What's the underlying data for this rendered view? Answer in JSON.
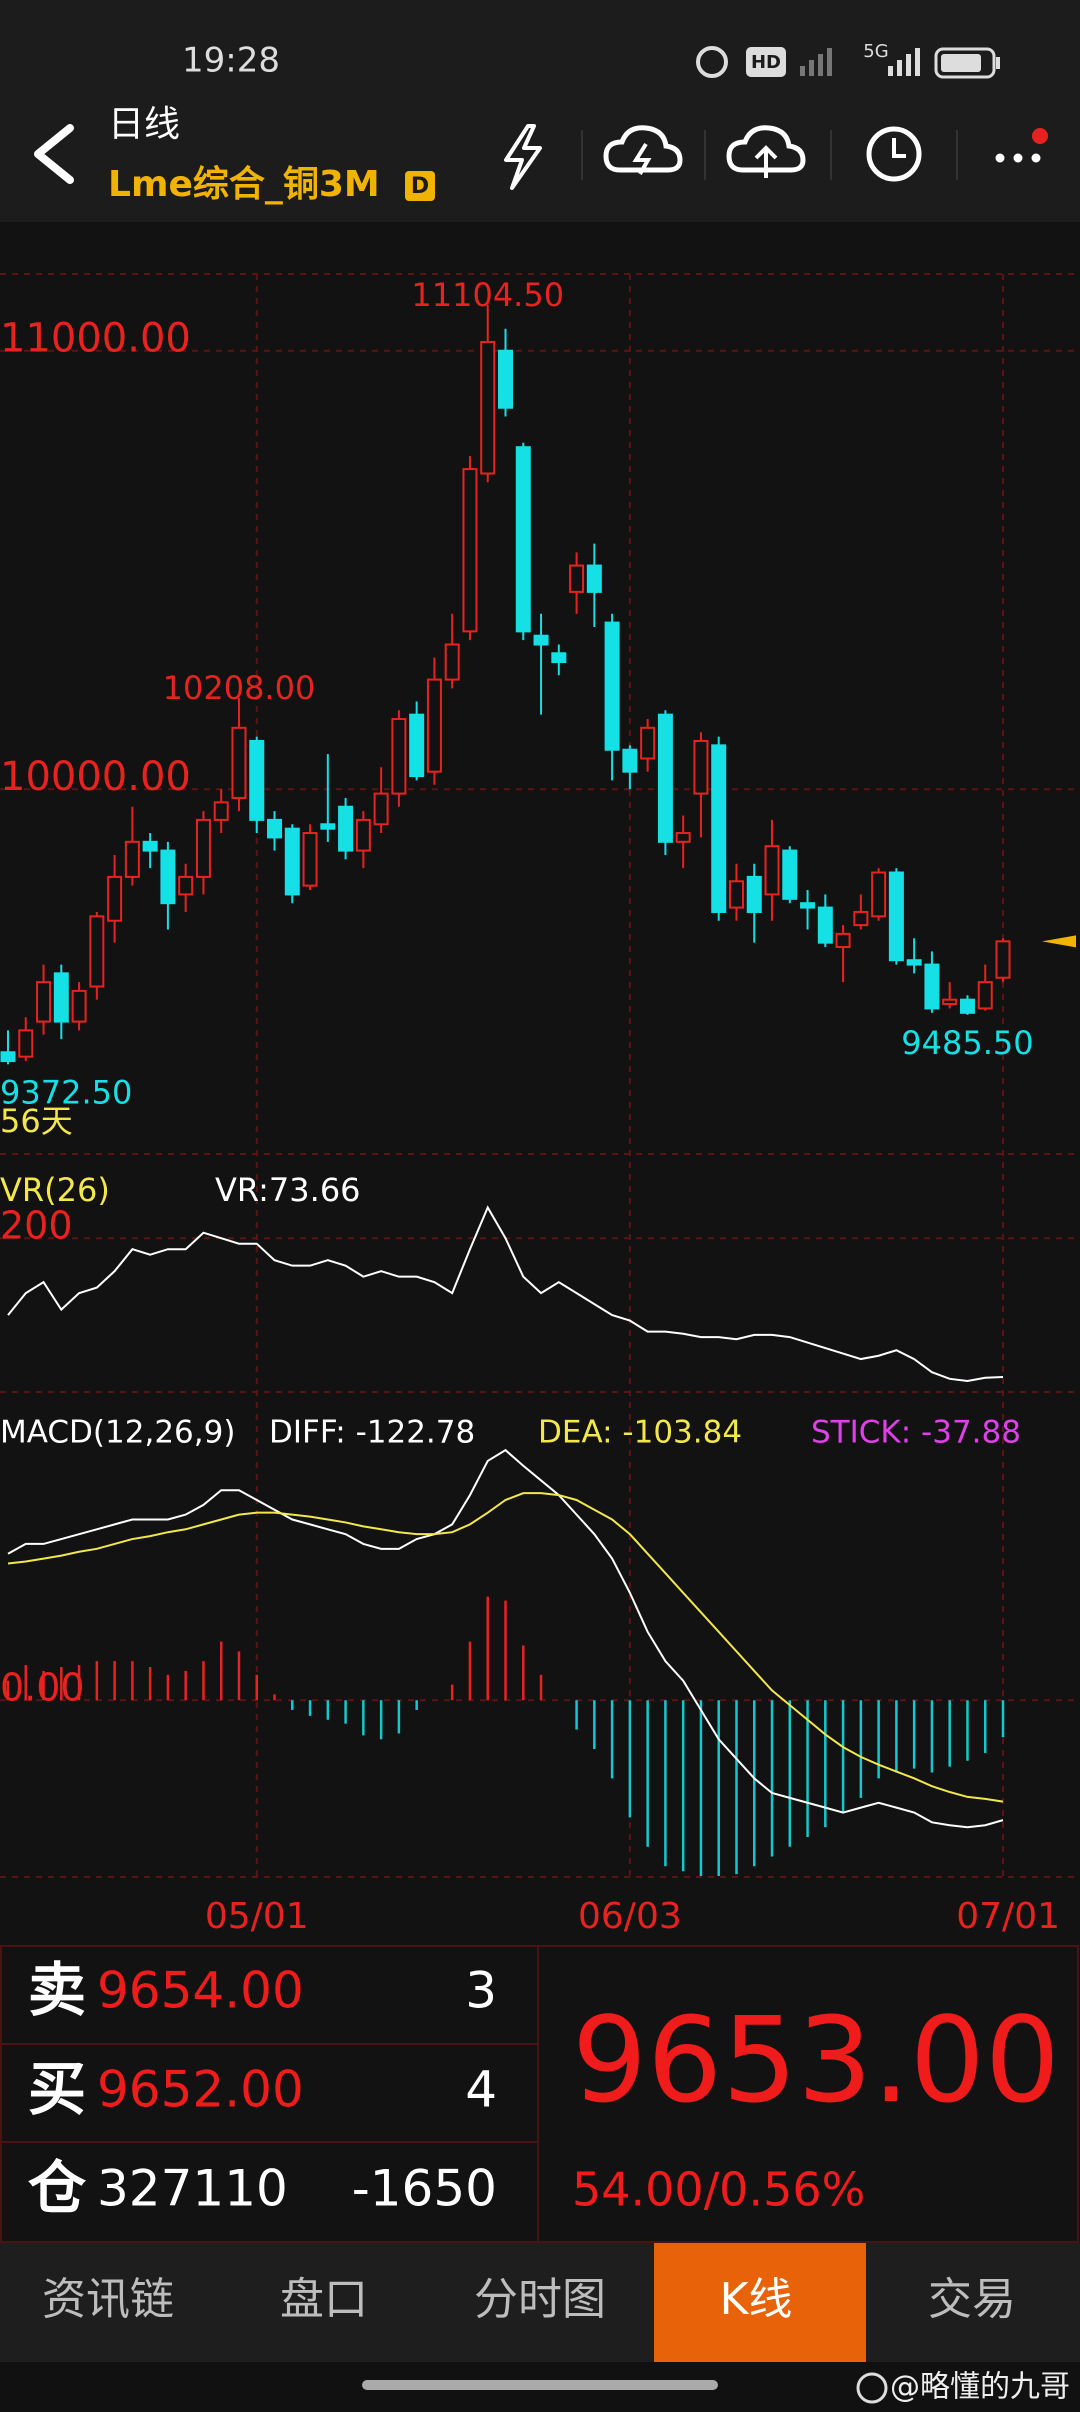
{
  "status_bar": {
    "time": "19:28",
    "hd": "HD",
    "network": "5G"
  },
  "header": {
    "title": "日线",
    "symbol": "Lme综合_铜3M",
    "badge": "D"
  },
  "chart_data": [
    {
      "type": "candlestick",
      "categories": [
        null,
        null,
        null,
        null,
        null,
        null,
        null,
        null,
        null,
        null,
        null,
        null,
        null,
        null,
        "05/01",
        null,
        null,
        null,
        null,
        null,
        null,
        null,
        null,
        null,
        null,
        null,
        null,
        null,
        null,
        null,
        null,
        null,
        null,
        null,
        null,
        "06/03",
        null,
        null,
        null,
        null,
        null,
        null,
        null,
        null,
        null,
        null,
        null,
        null,
        null,
        null,
        null,
        null,
        null,
        null,
        null,
        null,
        "07/01"
      ],
      "open": [
        9400,
        9390,
        9470,
        9580,
        9470,
        9550,
        9700,
        9800,
        9880,
        9860,
        9760,
        9800,
        9930,
        9980,
        10110,
        9930,
        9910,
        9780,
        9920,
        9960,
        9860,
        9920,
        9990,
        10170,
        10040,
        10250,
        10360,
        10720,
        11000,
        10780,
        10350,
        10310,
        10450,
        10510,
        10380,
        10090,
        10070,
        10170,
        9880,
        9990,
        10100,
        9730,
        9800,
        9760,
        9860,
        9740,
        9730,
        9640,
        9690,
        9710,
        9810,
        9610,
        9600,
        9510,
        9520,
        9500,
        9570
      ],
      "close": [
        9380,
        9450,
        9560,
        9470,
        9540,
        9710,
        9800,
        9880,
        9860,
        9740,
        9800,
        9930,
        9970,
        10140,
        9930,
        9890,
        9760,
        9900,
        9910,
        9860,
        9930,
        9990,
        10160,
        10030,
        10250,
        10330,
        10730,
        11020,
        10870,
        10360,
        10330,
        10290,
        10510,
        10450,
        10090,
        10040,
        10140,
        9880,
        9900,
        10110,
        9720,
        9790,
        9720,
        9870,
        9750,
        9730,
        9650,
        9670,
        9720,
        9810,
        9610,
        9600,
        9500,
        9520,
        9490,
        9560,
        9653
      ],
      "high": [
        9450,
        9480,
        9600,
        9600,
        9560,
        9720,
        9850,
        9960,
        9900,
        9880,
        9830,
        9950,
        10000,
        10208,
        10120,
        9950,
        9920,
        9920,
        10080,
        9980,
        9950,
        10050,
        10180,
        10200,
        10300,
        10400,
        10760,
        11104.5,
        11050,
        10790,
        10400,
        10330,
        10540,
        10560,
        10400,
        10100,
        10160,
        10180,
        9940,
        10130,
        10120,
        9830,
        9830,
        9930,
        9870,
        9770,
        9760,
        9690,
        9760,
        9820,
        9820,
        9660,
        9630,
        9560,
        9530,
        9600,
        9660
      ],
      "low": [
        9372.5,
        9380,
        9440,
        9430,
        9450,
        9520,
        9650,
        9780,
        9820,
        9680,
        9720,
        9760,
        9900,
        9950,
        9900,
        9860,
        9740,
        9770,
        9880,
        9840,
        9820,
        9900,
        9960,
        10020,
        10010,
        10230,
        10340,
        10700,
        10850,
        10340,
        10170,
        10260,
        10400,
        10370,
        10020,
        10000,
        10040,
        9850,
        9820,
        9890,
        9700,
        9700,
        9650,
        9700,
        9740,
        9680,
        9640,
        9560,
        9680,
        9700,
        9600,
        9580,
        9490,
        9500,
        9485.5,
        9495,
        9560
      ],
      "up_color": "#e8231f",
      "down_color": "#14e0e6",
      "ylim": [
        9168,
        11175
      ],
      "yticks": [
        {
          "value": 11000,
          "label": "11000.00"
        },
        {
          "value": 10000,
          "label": "10000.00"
        }
      ],
      "annotations": [
        {
          "value": 11104.5,
          "label": "11104.50"
        },
        {
          "value": 10208,
          "label": "10208.00"
        },
        {
          "value": 9485.5,
          "label": "9485.50"
        },
        {
          "value": 9372.5,
          "label": "9372.50"
        }
      ],
      "period_label": "56天",
      "grid": true
    },
    {
      "type": "line",
      "title": "VR(26)",
      "readout": "VR:73.66",
      "series": [
        {
          "color": "#ffffff",
          "values": [
            130,
            150,
            160,
            135,
            150,
            155,
            170,
            190,
            185,
            190,
            190,
            205,
            200,
            195,
            195,
            180,
            175,
            175,
            180,
            175,
            165,
            170,
            165,
            165,
            160,
            150,
            190,
            228,
            200,
            165,
            150,
            160,
            150,
            140,
            130,
            125,
            115,
            115,
            113,
            110,
            110,
            108,
            112,
            112,
            110,
            105,
            100,
            95,
            90,
            93,
            98,
            90,
            78,
            72,
            70,
            73,
            73.66
          ]
        }
      ],
      "ylim": [
        60,
        263
      ],
      "yticks": [
        200
      ]
    },
    {
      "type": "macd",
      "title": "MACD(12,26,9)",
      "readouts": [
        {
          "text": "DIFF: -122.78",
          "color": "#ffffff"
        },
        {
          "text": "DEA: -103.84",
          "color": "#f2e84a"
        },
        {
          "text": "STICK: -37.88",
          "color": "#e040e8"
        }
      ],
      "series": [
        {
          "color": "#ffffff",
          "values": [
            150,
            160,
            160,
            165,
            170,
            175,
            180,
            185,
            185,
            185,
            190,
            200,
            215,
            215,
            205,
            195,
            185,
            180,
            175,
            170,
            160,
            155,
            155,
            165,
            170,
            180,
            210,
            245,
            256,
            240,
            225,
            210,
            190,
            170,
            145,
            110,
            70,
            40,
            20,
            -10,
            -40,
            -60,
            -80,
            -95,
            -100,
            -105,
            -110,
            -115,
            -110,
            -105,
            -110,
            -115,
            -125,
            -128,
            -130,
            -128,
            -122.78
          ]
        },
        {
          "color": "#f2e84a",
          "values": [
            140,
            142,
            145,
            148,
            152,
            155,
            160,
            165,
            168,
            172,
            175,
            180,
            185,
            190,
            192,
            192,
            190,
            188,
            185,
            182,
            178,
            175,
            172,
            170,
            170,
            172,
            180,
            192,
            205,
            212,
            212,
            210,
            205,
            195,
            185,
            170,
            150,
            130,
            110,
            90,
            70,
            50,
            30,
            10,
            -5,
            -20,
            -35,
            -48,
            -58,
            -66,
            -73,
            -80,
            -88,
            -94,
            -99,
            -101,
            -103.84
          ]
        }
      ],
      "bars": [
        20,
        36,
        30,
        34,
        36,
        40,
        40,
        40,
        34,
        26,
        30,
        40,
        60,
        50,
        26,
        6,
        -10,
        -16,
        -20,
        -24,
        -36,
        -40,
        -34,
        -10,
        0,
        16,
        60,
        106,
        102,
        56,
        26,
        0,
        -30,
        -50,
        -80,
        -120,
        -150,
        -170,
        -175,
        -180,
        -180,
        -178,
        -170,
        -160,
        -150,
        -140,
        -130,
        -115,
        -100,
        -80,
        -74,
        -70,
        -74,
        -68,
        -62,
        -54,
        -37.88
      ],
      "up_color": "#e8231f",
      "down_color": "#14c8d0",
      "ylim": [
        -181,
        292
      ],
      "yticks": [
        {
          "value": 0,
          "label": "0.00"
        }
      ]
    }
  ],
  "quote": {
    "rows": [
      {
        "label": "卖",
        "price": "9654.00",
        "qty": "3"
      },
      {
        "label": "买",
        "price": "9652.00",
        "qty": "4"
      },
      {
        "label": "仓",
        "price": "327110",
        "qty": "-1650"
      }
    ],
    "last": "9653.00",
    "change": "54.00/0.56%"
  },
  "tabs": {
    "items": [
      "资讯链",
      "盘口",
      "分时图",
      "K线",
      "交易"
    ],
    "active": 3
  },
  "watermark": "@略懂的九哥"
}
